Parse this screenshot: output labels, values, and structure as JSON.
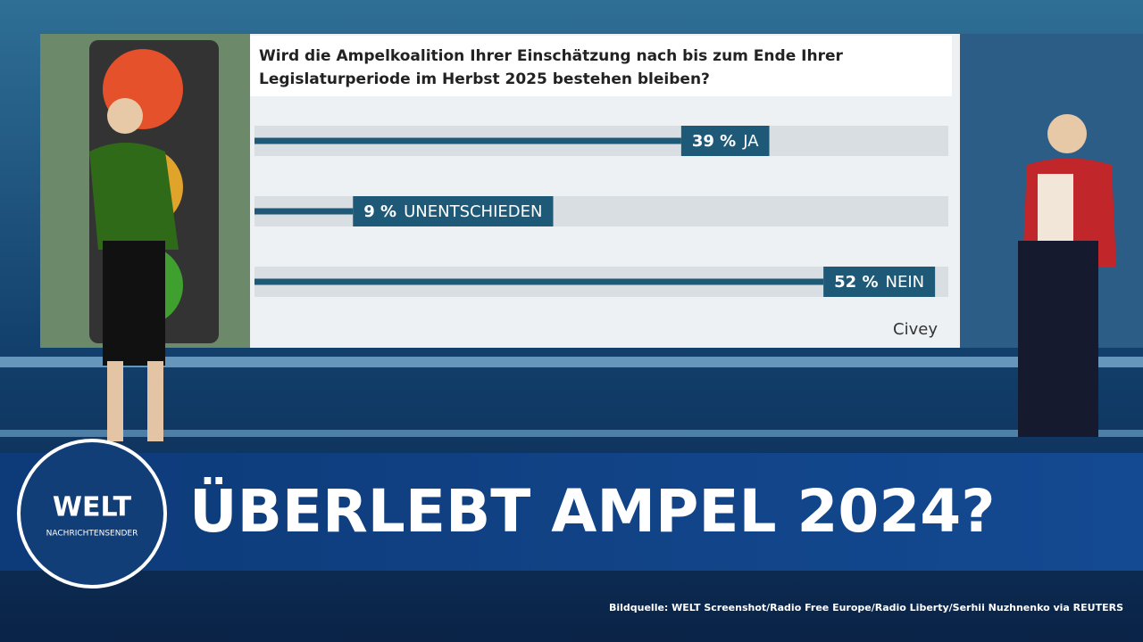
{
  "chart_data": {
    "type": "bar",
    "orientation": "horizontal",
    "title": "Wird die Ampelkoalition Ihrer Einschätzung nach bis zum Ende Ihrer Legislaturperiode im Herbst 2025 bestehen bleiben?",
    "categories": [
      "JA",
      "UNENTSCHIEDEN",
      "NEIN"
    ],
    "values": [
      39,
      9,
      52
    ],
    "value_labels": [
      "39 %",
      "9 %",
      "52 %"
    ],
    "color": "#1e5a78",
    "source": "Civey"
  },
  "headline": "ÜBERLEBT AMPEL 2024?",
  "logo": {
    "name": "WELT",
    "subtitle": "NACHRICHTENSENDER"
  },
  "credit": "Bildquelle: WELT Screenshot/Radio Free Europe/Radio Liberty/Serhii Nuzhnenko via REUTERS"
}
